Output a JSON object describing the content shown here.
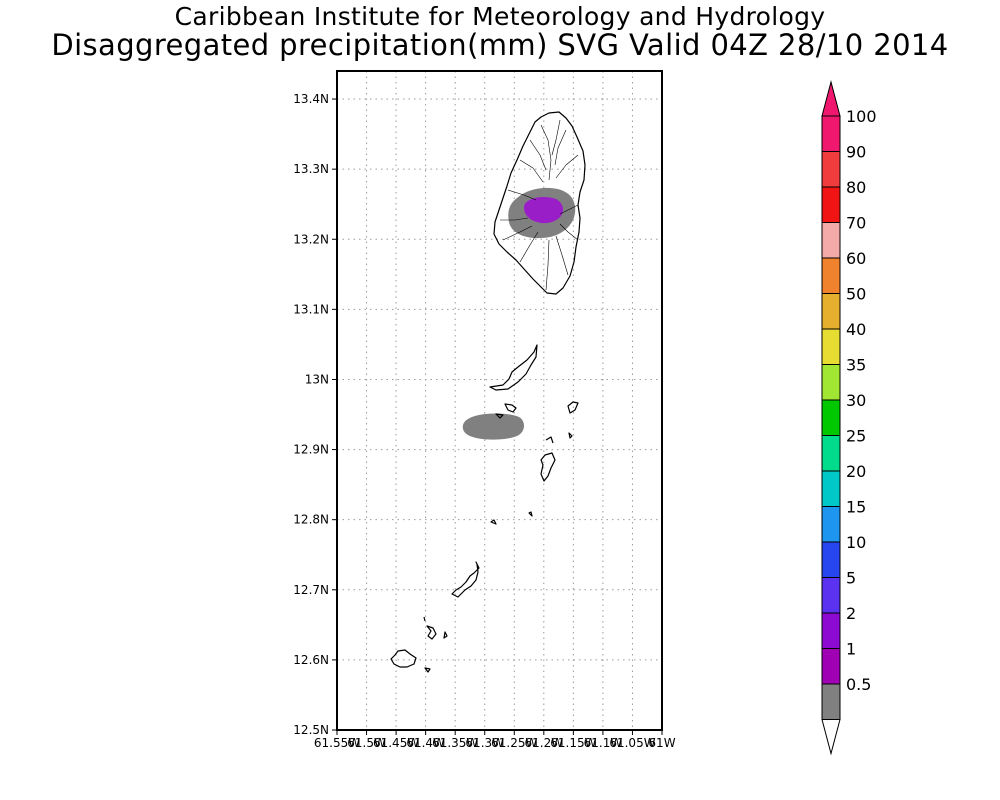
{
  "header": {
    "title": "Caribbean Institute for Meteorology and Hydrology",
    "subtitle": "Disaggregated precipitation(mm) SVG Valid 04Z 28/10 2014"
  },
  "map": {
    "lat_ticks": [
      "13.4N",
      "13.3N",
      "13.2N",
      "13.1N",
      "13N",
      "12.9N",
      "12.8N",
      "12.7N",
      "12.6N",
      "12.5N"
    ],
    "lon_ticks": [
      "61.55W",
      "61.5W",
      "61.45W",
      "61.4W",
      "61.35W",
      "61.3W",
      "61.25W",
      "61.2W",
      "61.15W",
      "61.1W",
      "61.05W",
      "61W"
    ],
    "extent": {
      "lon_min": -61.55,
      "lon_max": -61.0,
      "lat_min": 12.5,
      "lat_max": 13.44
    },
    "grid": true,
    "precip_areas": [
      {
        "name": "St Vincent outer",
        "category": "0.5-1",
        "color": "#808080"
      },
      {
        "name": "St Vincent core",
        "category": "2-5",
        "color": "#9a1ec8"
      },
      {
        "name": "Bequia area",
        "category": "0.5-1",
        "color": "#808080"
      }
    ]
  },
  "colorbar": {
    "levels": [
      "100",
      "90",
      "80",
      "70",
      "60",
      "50",
      "40",
      "35",
      "30",
      "25",
      "20",
      "15",
      "10",
      "5",
      "2",
      "1",
      "0.5"
    ],
    "colors": [
      "#f0186e",
      "#f03c3c",
      "#f01414",
      "#f5aaaa",
      "#f0822d",
      "#e6af2d",
      "#e6dc32",
      "#a0e632",
      "#00c800",
      "#00dc8c",
      "#00c8c8",
      "#1e96f0",
      "#2846f0",
      "#5a32f0",
      "#8c0ad2",
      "#a000b4",
      "#808080"
    ],
    "top_arrow_color": "#f0186e",
    "bottom_arrow_color": "#ffffff"
  }
}
